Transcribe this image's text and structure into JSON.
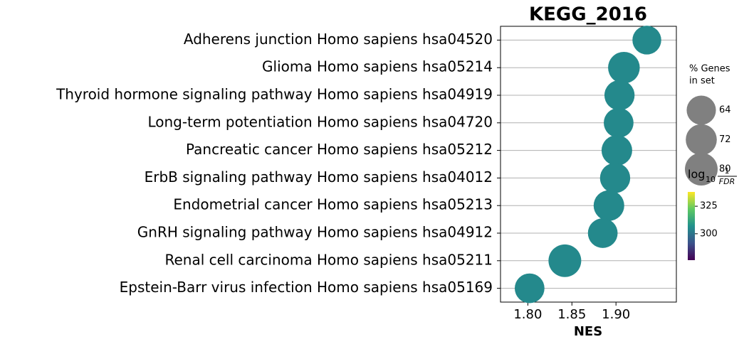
{
  "chart_data": {
    "type": "scatter",
    "title": "KEGG_2016",
    "x_label": "NES",
    "categories": [
      "Adherens junction Homo sapiens hsa04520",
      "Glioma Homo sapiens hsa05214",
      "Thyroid hormone signaling pathway Homo sapiens hsa04919",
      "Long-term potentiation Homo sapiens hsa04720",
      "Pancreatic cancer Homo sapiens hsa05212",
      "ErbB signaling pathway Homo sapiens hsa04012",
      "Endometrial cancer Homo sapiens hsa05213",
      "GnRH signaling pathway Homo sapiens hsa04912",
      "Renal cell carcinoma Homo sapiens hsa05211",
      "Epstein-Barr virus infection Homo sapiens hsa05169"
    ],
    "values": [
      1.935,
      1.909,
      1.904,
      1.903,
      1.901,
      1.899,
      1.892,
      1.885,
      1.842,
      1.802
    ],
    "sizes": [
      62,
      75,
      68,
      66,
      70,
      68,
      70,
      66,
      80,
      66
    ],
    "color_values": [
      305,
      305,
      305,
      305,
      305,
      305,
      305,
      305,
      305,
      305
    ],
    "xlim": [
      1.769,
      1.9685
    ],
    "xticks": [
      {
        "value": 1.8,
        "label": "1.80"
      },
      {
        "value": 1.85,
        "label": "1.85"
      },
      {
        "value": 1.9,
        "label": "1.90"
      }
    ],
    "grid": true,
    "colormap": "viridis",
    "size_legend": {
      "title": [
        "% Genes",
        "in set"
      ],
      "values": [
        64,
        72,
        80
      ]
    },
    "colorbar": {
      "label": {
        "base": "log",
        "sub": "10",
        "num": "1",
        "den": "FDR"
      },
      "lim": [
        276,
        338
      ],
      "ticks": [
        300,
        325
      ]
    }
  }
}
